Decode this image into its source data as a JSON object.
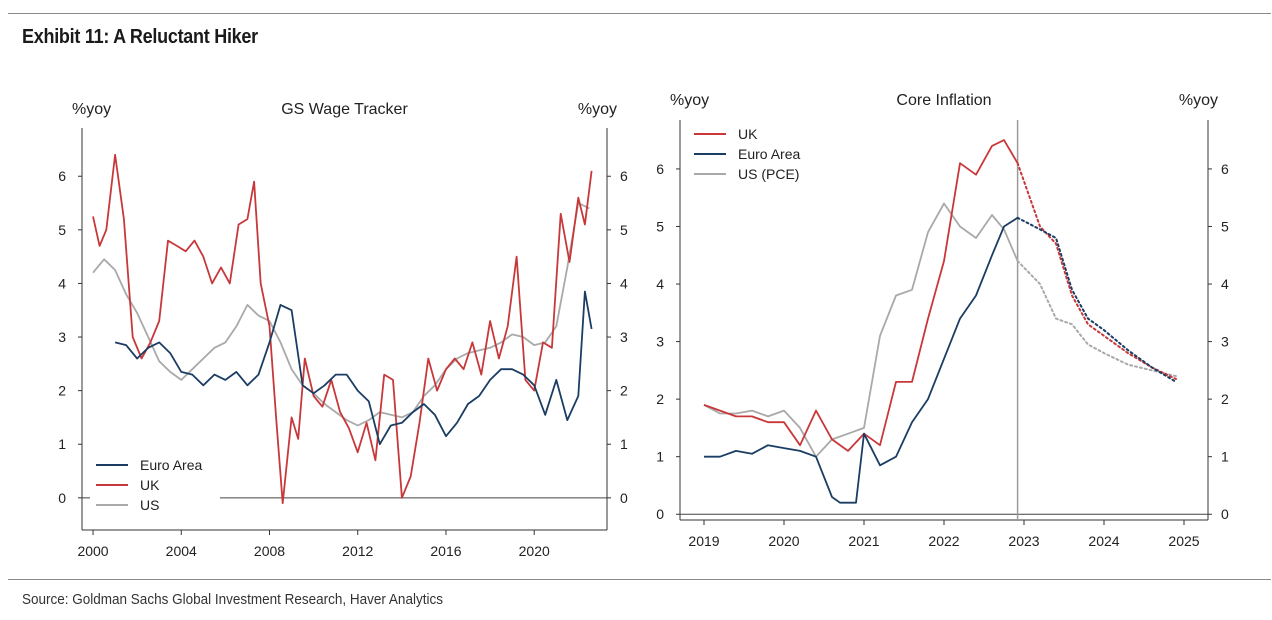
{
  "exhibit": {
    "title": "Exhibit 11: A Reluctant Hiker",
    "source": "Source: Goldman Sachs Global Investment Research, Haver Analytics"
  },
  "chart_data": [
    {
      "type": "line",
      "title": "GS Wage Tracker",
      "ylabel_left": "%yoy",
      "ylabel_right": "%yoy",
      "x_ticks": [
        "2000",
        "2004",
        "2008",
        "2012",
        "2016",
        "2020"
      ],
      "y_ticks": [
        "0",
        "1",
        "2",
        "3",
        "4",
        "5",
        "6"
      ],
      "xlim": [
        1999.5,
        2023.3
      ],
      "ylim": [
        -0.6,
        6.9
      ],
      "legend_position": "bottom-left",
      "colors": {
        "Euro Area": "#1b3d63",
        "UK": "#c8383a",
        "US": "#a9a9a9"
      },
      "series": [
        {
          "name": "US",
          "x": [
            2000,
            2000.5,
            2001,
            2001.5,
            2002,
            2002.5,
            2003,
            2003.5,
            2004,
            2004.5,
            2005,
            2005.5,
            2006,
            2006.5,
            2007,
            2007.5,
            2008,
            2008.5,
            2009,
            2009.5,
            2010,
            2010.5,
            2011,
            2011.5,
            2012,
            2012.5,
            2013,
            2013.5,
            2014,
            2014.5,
            2015,
            2015.5,
            2016,
            2016.5,
            2017,
            2017.5,
            2018,
            2018.5,
            2019,
            2019.5,
            2020,
            2020.5,
            2021,
            2021.5,
            2022,
            2022.5
          ],
          "y": [
            4.2,
            4.45,
            4.25,
            3.8,
            3.45,
            3.0,
            2.55,
            2.35,
            2.2,
            2.4,
            2.6,
            2.8,
            2.9,
            3.2,
            3.6,
            3.4,
            3.3,
            2.9,
            2.4,
            2.1,
            1.95,
            1.75,
            1.6,
            1.45,
            1.35,
            1.45,
            1.6,
            1.55,
            1.5,
            1.6,
            1.9,
            2.1,
            2.4,
            2.6,
            2.7,
            2.75,
            2.8,
            2.9,
            3.05,
            3.0,
            2.85,
            2.9,
            3.2,
            4.3,
            5.5,
            5.4
          ]
        },
        {
          "name": "UK",
          "x": [
            2000,
            2000.3,
            2000.6,
            2001,
            2001.4,
            2001.8,
            2002.2,
            2002.6,
            2003,
            2003.4,
            2003.8,
            2004.2,
            2004.6,
            2005,
            2005.4,
            2005.8,
            2006.2,
            2006.6,
            2007,
            2007.3,
            2007.6,
            2008,
            2008.3,
            2008.6,
            2009,
            2009.3,
            2009.6,
            2010,
            2010.4,
            2010.8,
            2011.2,
            2011.6,
            2012,
            2012.4,
            2012.8,
            2013.2,
            2013.6,
            2014,
            2014.4,
            2014.8,
            2015.2,
            2015.6,
            2016,
            2016.4,
            2016.8,
            2017.2,
            2017.6,
            2018,
            2018.4,
            2018.8,
            2019.2,
            2019.6,
            2020,
            2020.4,
            2020.8,
            2021.2,
            2021.6,
            2022,
            2022.3,
            2022.6
          ],
          "y": [
            5.25,
            4.7,
            5.0,
            6.4,
            5.2,
            3.0,
            2.6,
            2.9,
            3.3,
            4.8,
            4.7,
            4.6,
            4.8,
            4.5,
            4.0,
            4.3,
            4.0,
            5.1,
            5.2,
            5.9,
            4.0,
            3.2,
            1.5,
            -0.1,
            1.5,
            1.1,
            2.6,
            1.9,
            1.7,
            2.2,
            1.6,
            1.3,
            0.85,
            1.4,
            0.7,
            2.3,
            2.2,
            0.0,
            0.4,
            1.4,
            2.6,
            2.0,
            2.4,
            2.6,
            2.4,
            2.9,
            2.3,
            3.3,
            2.6,
            3.2,
            4.5,
            2.2,
            2.0,
            2.9,
            2.8,
            5.3,
            4.4,
            5.6,
            5.1,
            6.1
          ]
        },
        {
          "name": "Euro Area",
          "x": [
            2001,
            2001.5,
            2002,
            2002.5,
            2003,
            2003.5,
            2004,
            2004.5,
            2005,
            2005.5,
            2006,
            2006.5,
            2007,
            2007.5,
            2008,
            2008.5,
            2009,
            2009.5,
            2010,
            2010.5,
            2011,
            2011.5,
            2012,
            2012.5,
            2013,
            2013.5,
            2014,
            2014.5,
            2015,
            2015.5,
            2016,
            2016.5,
            2017,
            2017.5,
            2018,
            2018.5,
            2019,
            2019.5,
            2020,
            2020.5,
            2021,
            2021.5,
            2022,
            2022.3,
            2022.6
          ],
          "y": [
            2.9,
            2.85,
            2.6,
            2.8,
            2.9,
            2.7,
            2.35,
            2.3,
            2.1,
            2.3,
            2.2,
            2.35,
            2.1,
            2.3,
            2.9,
            3.6,
            3.5,
            2.1,
            1.95,
            2.1,
            2.3,
            2.3,
            2.0,
            1.8,
            1.0,
            1.35,
            1.4,
            1.6,
            1.75,
            1.55,
            1.15,
            1.4,
            1.75,
            1.9,
            2.2,
            2.4,
            2.4,
            2.3,
            2.1,
            1.55,
            2.2,
            1.45,
            1.9,
            3.85,
            3.15
          ]
        }
      ]
    },
    {
      "type": "line",
      "title": "Core Inflation",
      "ylabel_left": "%yoy",
      "ylabel_right": "%yoy",
      "x_ticks": [
        "2019",
        "2020",
        "2021",
        "2022",
        "2023",
        "2024",
        "2025"
      ],
      "y_ticks": [
        "0",
        "1",
        "2",
        "3",
        "4",
        "5",
        "6"
      ],
      "xlim": [
        2018.7,
        2025.3
      ],
      "ylim": [
        -0.1,
        6.85
      ],
      "forecast_start": 2022.92,
      "legend_position": "top-left",
      "colors": {
        "UK": "#c8383a",
        "Euro Area": "#1b3d63",
        "US (PCE)": "#a9a9a9"
      },
      "series": [
        {
          "name": "US (PCE)",
          "x": [
            2019.0,
            2019.2,
            2019.4,
            2019.6,
            2019.8,
            2020.0,
            2020.2,
            2020.4,
            2020.6,
            2020.8,
            2021.0,
            2021.2,
            2021.4,
            2021.6,
            2021.8,
            2022.0,
            2022.2,
            2022.4,
            2022.6,
            2022.75,
            2022.92
          ],
          "y": [
            1.9,
            1.75,
            1.75,
            1.8,
            1.7,
            1.8,
            1.5,
            1.0,
            1.3,
            1.4,
            1.5,
            3.1,
            3.8,
            3.9,
            4.9,
            5.4,
            5.0,
            4.8,
            5.2,
            4.95,
            4.4
          ],
          "forecast_x": [
            2022.92,
            2023.2,
            2023.4,
            2023.6,
            2023.8,
            2024.0,
            2024.3,
            2024.6,
            2024.9
          ],
          "forecast_y": [
            4.4,
            4.0,
            3.4,
            3.3,
            2.95,
            2.8,
            2.6,
            2.5,
            2.4
          ]
        },
        {
          "name": "UK",
          "x": [
            2019.0,
            2019.2,
            2019.4,
            2019.6,
            2019.8,
            2020.0,
            2020.2,
            2020.4,
            2020.6,
            2020.8,
            2021.0,
            2021.2,
            2021.4,
            2021.6,
            2021.8,
            2022.0,
            2022.2,
            2022.4,
            2022.6,
            2022.75,
            2022.92
          ],
          "y": [
            1.9,
            1.8,
            1.7,
            1.7,
            1.6,
            1.6,
            1.2,
            1.8,
            1.3,
            1.1,
            1.4,
            1.2,
            2.3,
            2.3,
            3.4,
            4.4,
            6.1,
            5.9,
            6.4,
            6.5,
            6.1
          ],
          "forecast_x": [
            2022.92,
            2023.2,
            2023.4,
            2023.6,
            2023.8,
            2024.0,
            2024.3,
            2024.6,
            2024.9
          ],
          "forecast_y": [
            6.1,
            5.0,
            4.7,
            3.8,
            3.3,
            3.1,
            2.8,
            2.55,
            2.35
          ]
        },
        {
          "name": "Euro Area",
          "x": [
            2019.0,
            2019.2,
            2019.4,
            2019.6,
            2019.8,
            2020.0,
            2020.2,
            2020.4,
            2020.6,
            2020.7,
            2020.8,
            2020.9,
            2021.0,
            2021.2,
            2021.4,
            2021.6,
            2021.8,
            2022.0,
            2022.2,
            2022.4,
            2022.6,
            2022.75,
            2022.92
          ],
          "y": [
            1.0,
            1.0,
            1.1,
            1.05,
            1.2,
            1.15,
            1.1,
            1.0,
            0.3,
            0.2,
            0.2,
            0.2,
            1.4,
            0.85,
            1.0,
            1.6,
            2.0,
            2.7,
            3.4,
            3.8,
            4.5,
            5.0,
            5.15
          ],
          "forecast_x": [
            2022.92,
            2023.2,
            2023.4,
            2023.6,
            2023.8,
            2024.0,
            2024.3,
            2024.6,
            2024.9
          ],
          "forecast_y": [
            5.15,
            4.95,
            4.8,
            3.9,
            3.4,
            3.2,
            2.85,
            2.55,
            2.3
          ]
        }
      ]
    }
  ]
}
